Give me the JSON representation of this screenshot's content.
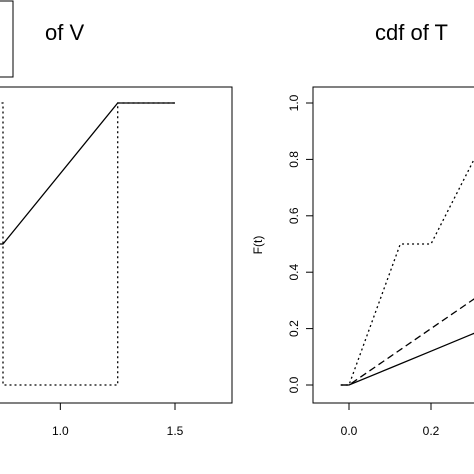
{
  "chart_data": [
    {
      "type": "line",
      "title": "of V",
      "xlabel": "",
      "ylabel": "",
      "xlim": [
        0.7,
        1.6
      ],
      "ylim": [
        -0.05,
        1.05
      ],
      "x_ticks": [
        1.0,
        1.5
      ],
      "x_tick_labels": [
        "1.0",
        "1.5"
      ],
      "grid": false,
      "legend": "top-left (partially visible box)",
      "series": [
        {
          "line_style": "solid",
          "x": [
            0.7,
            0.75,
            1.25,
            1.5
          ],
          "y": [
            0.5,
            0.5,
            1.0,
            1.0
          ]
        },
        {
          "line_style": "dotted",
          "x": [
            0.7,
            0.75,
            0.75,
            1.25,
            1.25,
            1.5
          ],
          "y": [
            1.0,
            1.0,
            0.0,
            0.0,
            1.0,
            1.0
          ]
        }
      ]
    },
    {
      "type": "line",
      "title": "cdf of T",
      "xlabel": "",
      "ylabel": "F(t)",
      "xlim": [
        -0.07,
        0.47
      ],
      "ylim": [
        -0.05,
        1.05
      ],
      "x_ticks": [
        0.0,
        0.2
      ],
      "x_tick_labels": [
        "0.0",
        "0.2"
      ],
      "y_ticks": [
        0.0,
        0.2,
        0.4,
        0.6,
        0.8,
        1.0
      ],
      "y_tick_labels": [
        "0.0",
        "0.2",
        "0.4",
        "0.6",
        "0.8",
        "1.0"
      ],
      "grid": false,
      "series": [
        {
          "line_style": "dotted",
          "x": [
            -0.02,
            0.0,
            0.125,
            0.2,
            0.375
          ],
          "y": [
            0.0,
            0.0,
            0.5,
            0.5,
            1.0
          ]
        },
        {
          "line_style": "dashed",
          "x": [
            -0.02,
            0.0,
            0.1,
            0.2,
            0.3,
            0.4
          ],
          "y": [
            0.0,
            0.0,
            0.1,
            0.2,
            0.3,
            0.4
          ]
        },
        {
          "line_style": "solid",
          "x": [
            -0.02,
            0.0,
            0.1,
            0.2,
            0.3,
            0.4,
            0.47
          ],
          "y": [
            0.0,
            0.0,
            0.06,
            0.12,
            0.18,
            0.24,
            0.3
          ]
        }
      ]
    }
  ]
}
